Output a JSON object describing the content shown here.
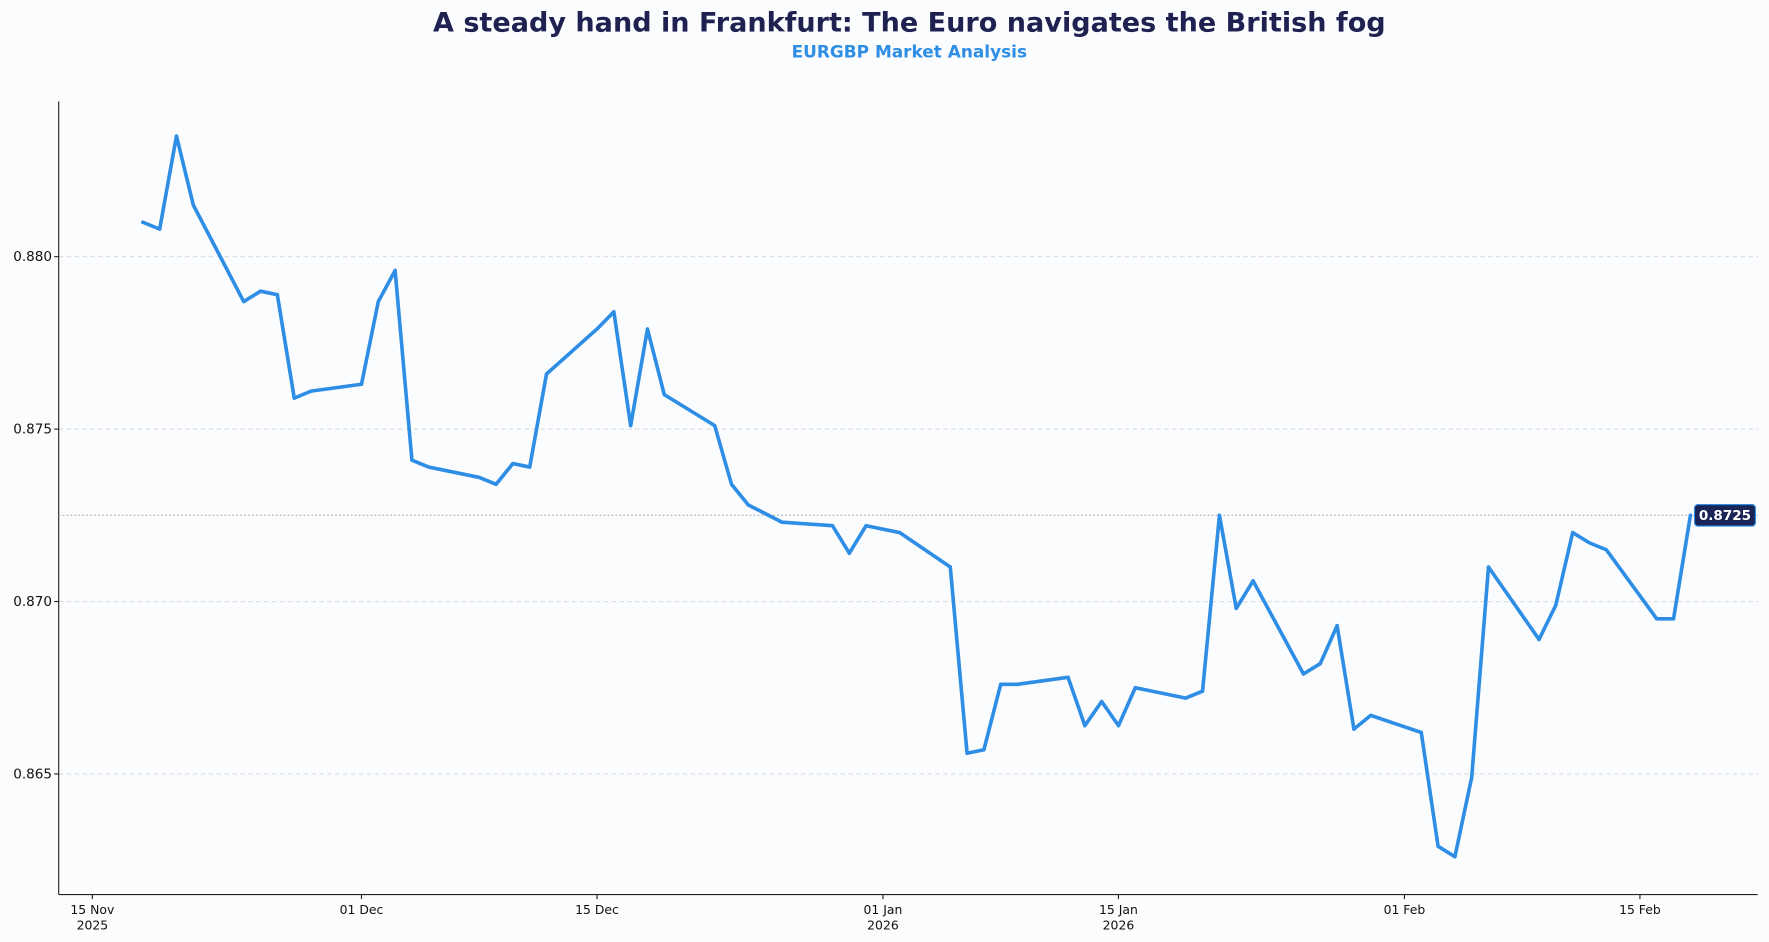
{
  "chart_data": {
    "type": "line",
    "title": "A steady hand in Frankfurt: The Euro navigates the British fog",
    "subtitle": "EURGBP Market Analysis",
    "xlabel": "",
    "ylabel": "",
    "xlim": [
      "2025-11-13",
      "2026-02-22"
    ],
    "ylim": [
      0.8615,
      0.8845
    ],
    "grid": {
      "y": true,
      "x": false
    },
    "colors": {
      "line": "#2e8de4",
      "title": "#1f2150",
      "subtitle": "#2e8de4",
      "last_badge": "#1a2456"
    },
    "y_ticks": [
      {
        "value": 0.865,
        "label": "0.865"
      },
      {
        "value": 0.87,
        "label": "0.870"
      },
      {
        "value": 0.875,
        "label": "0.875"
      },
      {
        "value": 0.88,
        "label": "0.880"
      }
    ],
    "x_ticks": [
      {
        "date": "2025-11-15",
        "line1": "15 Nov",
        "line2": "2025"
      },
      {
        "date": "2025-12-01",
        "line1": "01 Dec",
        "line2": ""
      },
      {
        "date": "2025-12-15",
        "line1": "15 Dec",
        "line2": ""
      },
      {
        "date": "2026-01-01",
        "line1": "01 Jan",
        "line2": "2026"
      },
      {
        "date": "2026-01-15",
        "line1": "15 Jan",
        "line2": "2026"
      },
      {
        "date": "2026-02-01",
        "line1": "01 Feb",
        "line2": ""
      },
      {
        "date": "2026-02-15",
        "line1": "15 Feb",
        "line2": ""
      }
    ],
    "last_value_label": "0.8725",
    "last_value": 0.8725,
    "x": [
      "2025-11-18",
      "2025-11-19",
      "2025-11-20",
      "2025-11-21",
      "2025-11-24",
      "2025-11-25",
      "2025-11-26",
      "2025-11-27",
      "2025-11-28",
      "2025-12-01",
      "2025-12-02",
      "2025-12-03",
      "2025-12-04",
      "2025-12-05",
      "2025-12-08",
      "2025-12-09",
      "2025-12-10",
      "2025-12-11",
      "2025-12-12",
      "2025-12-15",
      "2025-12-16",
      "2025-12-17",
      "2025-12-18",
      "2025-12-19",
      "2025-12-22",
      "2025-12-23",
      "2025-12-24",
      "2025-12-26",
      "2025-12-29",
      "2025-12-30",
      "2025-12-31",
      "2026-01-02",
      "2026-01-05",
      "2026-01-06",
      "2026-01-07",
      "2026-01-08",
      "2026-01-09",
      "2026-01-12",
      "2026-01-13",
      "2026-01-14",
      "2026-01-15",
      "2026-01-16",
      "2026-01-19",
      "2026-01-20",
      "2026-01-21",
      "2026-01-22",
      "2026-01-23",
      "2026-01-26",
      "2026-01-27",
      "2026-01-28",
      "2026-01-29",
      "2026-01-30",
      "2026-02-02",
      "2026-02-03",
      "2026-02-04",
      "2026-02-05",
      "2026-02-06",
      "2026-02-09",
      "2026-02-10",
      "2026-02-11",
      "2026-02-12",
      "2026-02-13",
      "2026-02-16",
      "2026-02-17",
      "2026-02-18"
    ],
    "values": [
      0.881,
      0.8808,
      0.8835,
      0.8815,
      0.8787,
      0.879,
      0.8789,
      0.8759,
      0.8761,
      0.8763,
      0.8787,
      0.8796,
      0.8741,
      0.8739,
      0.8736,
      0.8734,
      0.874,
      0.8739,
      0.8766,
      0.8779,
      0.8784,
      0.8751,
      0.8779,
      0.876,
      0.8751,
      0.8734,
      0.8728,
      0.8723,
      0.8722,
      0.8714,
      0.8722,
      0.872,
      0.871,
      0.8656,
      0.8657,
      0.8676,
      0.8676,
      0.8678,
      0.8664,
      0.8671,
      0.8664,
      0.8675,
      0.8672,
      0.8674,
      0.8725,
      0.8698,
      0.8706,
      0.8679,
      0.8682,
      0.8693,
      0.8663,
      0.8667,
      0.8662,
      0.8629,
      0.8626,
      0.8649,
      0.871,
      0.8689,
      0.8699,
      0.872,
      0.8717,
      0.8715,
      0.8695,
      0.8695,
      0.8725
    ]
  }
}
